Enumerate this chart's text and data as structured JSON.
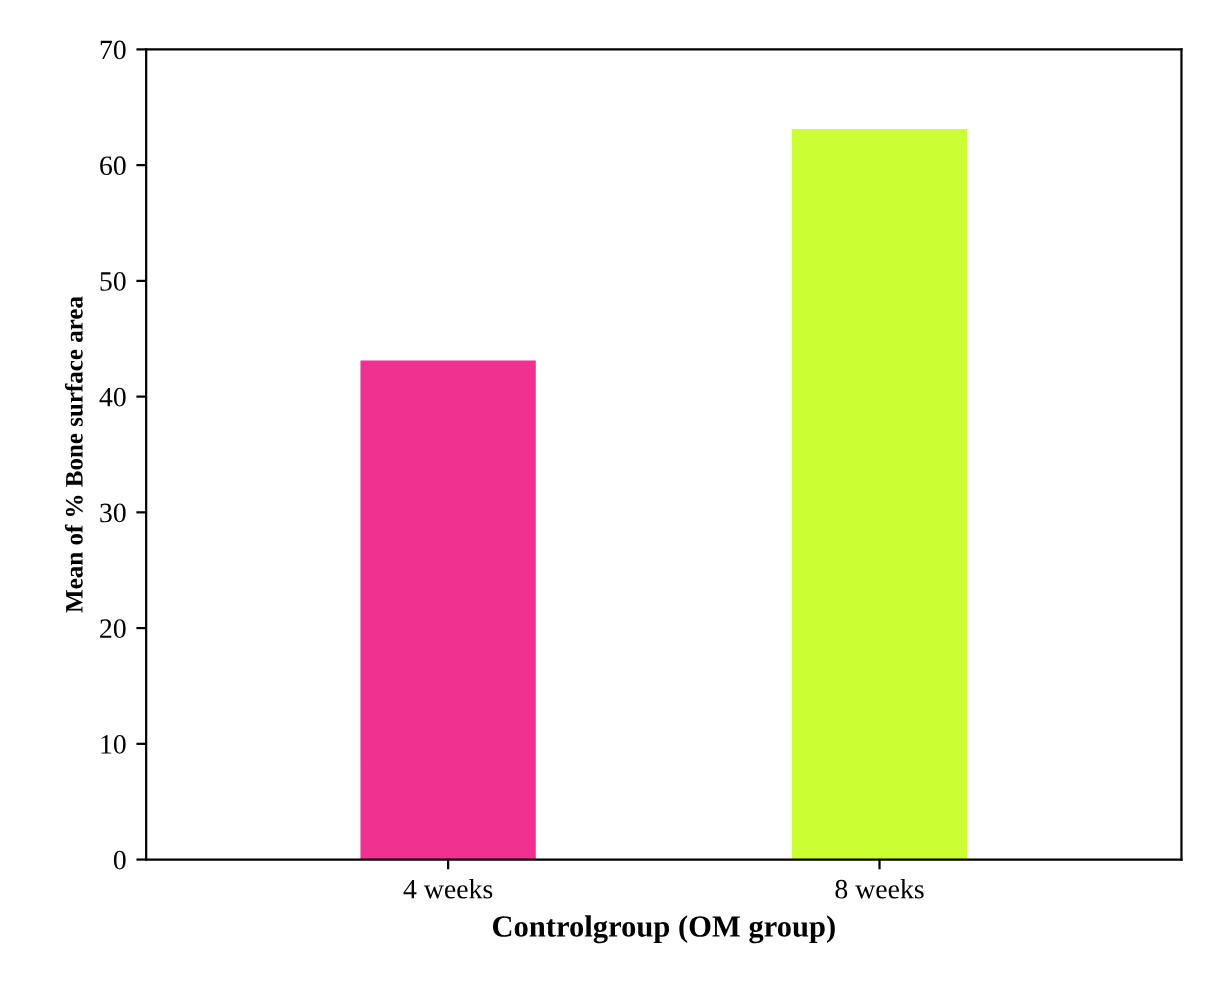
{
  "chart_data": {
    "type": "bar",
    "xlabel": "Controlgroup (OM group)",
    "ylabel": "Mean of % Bone surface area",
    "categories": [
      "4 weeks",
      "8 weeks"
    ],
    "series": [
      {
        "colors": [
          "#f0318f",
          "#ccff33"
        ],
        "values": [
          43,
          63
        ]
      }
    ],
    "ylim": [
      0,
      70
    ],
    "yticks": [
      0,
      10,
      20,
      30,
      40,
      50,
      60,
      70
    ],
    "grid": false,
    "legend": false
  }
}
